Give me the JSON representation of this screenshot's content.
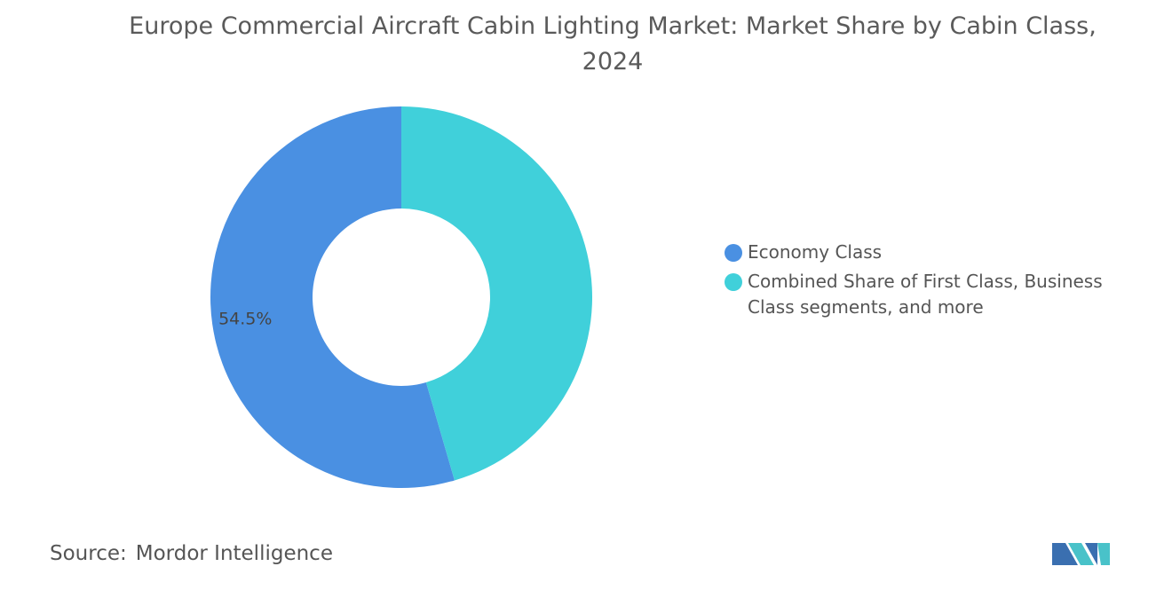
{
  "chart_data": {
    "type": "donut",
    "title": "Europe Commercial Aircraft Cabin Lighting Market: Market Share by Cabin Class, 2024",
    "categories": [
      "Economy Class",
      "Combined Share of First Class, Business Class segments, and more"
    ],
    "values": [
      54.5,
      45.5
    ],
    "value_labels": [
      "54.5%",
      null
    ],
    "colors": [
      "#4a90e2",
      "#40d0da"
    ],
    "source_label": "Source:",
    "source": "Mordor Intelligence"
  }
}
